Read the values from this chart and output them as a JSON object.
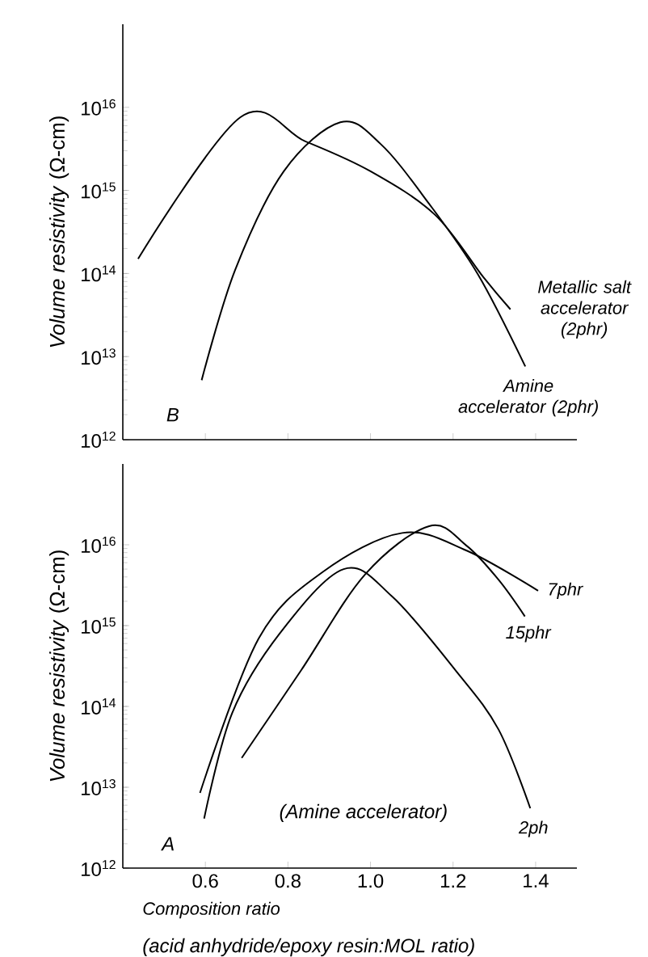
{
  "chart_data": [
    {
      "type": "line",
      "annotations": [
        "B"
      ],
      "ylabel": "*Volume resistivity* (Ω-cm)",
      "xlim": [
        0.4,
        1.5
      ],
      "ylim": [
        1000000000000.0,
        1e+17
      ],
      "log": "y",
      "tick_labels": "y",
      "marker": "none",
      "line_style": "solid",
      "xticks": [
        {
          "value": 0.6,
          "label": null
        },
        {
          "value": 0.8,
          "label": null
        },
        {
          "value": 1.0,
          "label": null
        },
        {
          "value": 1.2,
          "label": null
        },
        {
          "value": 1.4,
          "label": null
        }
      ],
      "yticks": [
        {
          "value": 1000000000000.0,
          "label": "10$^{12}$"
        },
        {
          "value": 10000000000000.0,
          "label": "10$^{13}$"
        },
        {
          "value": 100000000000000.0,
          "label": "10$^{14}$"
        },
        {
          "value": 1000000000000000.0,
          "label": "10$^{15}$"
        },
        {
          "value": 1e+16,
          "label": "10$^{16}$"
        }
      ],
      "series": [
        {
          "name": "Metallic salt accelerator (2phr)",
          "color": "#000000",
          "x": [
            0.437,
            0.685,
            0.842,
            1.0,
            1.156,
            1.273,
            1.339
          ],
          "values": [
            150000000000000.0,
            7600000000000000.0,
            3900000000000000.0,
            1700000000000000.0,
            510000000000000.0,
            91000000000000.0,
            37000000000000.0
          ]
        },
        {
          "name": "Amine accelerator (2phr)",
          "color": "#000000",
          "x": [
            0.591,
            0.672,
            0.79,
            0.927,
            1.025,
            1.142,
            1.26,
            1.375
          ],
          "values": [
            5200000000000.0,
            110000000000000.0,
            1700000000000000.0,
            6600000000000000.0,
            3600000000000000.0,
            690000000000000.0,
            98000000000000.0,
            7600000000000.0
          ]
        }
      ]
    },
    {
      "type": "line",
      "annotations": [
        "A",
        "(Amine accelerator)",
        "(acid anhydride/epoxy resin:MOL ratio)"
      ],
      "xlabel": "Composition ratio",
      "ylabel": "*Volume resistivity* (Ω-cm)",
      "xlim": [
        0.4,
        1.5
      ],
      "ylim": [
        1000000000000.0,
        1e+17
      ],
      "log": "y",
      "marker": "none",
      "line_style": "solid",
      "xticks": [
        0.6,
        0.8,
        {
          "value": 1.0,
          "label": "1.0"
        },
        1.2,
        1.4
      ],
      "yticks": [
        {
          "value": 1000000000000.0,
          "label": "10$^{12}$"
        },
        {
          "value": 10000000000000.0,
          "label": "10$^{13}$"
        },
        {
          "value": 100000000000000.0,
          "label": "10$^{14}$"
        },
        {
          "value": 1000000000000000.0,
          "label": "10$^{15}$"
        },
        {
          "value": 1e+16,
          "label": "10$^{16}$"
        }
      ],
      "series": [
        {
          "name": "7phr",
          "color": "#000000",
          "x": [
            0.587,
            0.729,
            0.884,
            1.077,
            1.232,
            1.406
          ],
          "values": [
            8500000000000.0,
            690000000000000.0,
            4600000000000000.0,
            1.4e+16,
            8500000000000000.0,
            2700000000000000.0
          ]
        },
        {
          "name": "15phr",
          "color": "#000000",
          "x": [
            0.688,
            0.832,
            0.987,
            1.142,
            1.232,
            1.31,
            1.374
          ],
          "values": [
            23000000000000.0,
            280000000000000.0,
            4300000000000000.0,
            1.7e+16,
            9800000000000000.0,
            3700000000000000.0,
            1300000000000000.0
          ]
        },
        {
          "name": "2ph",
          "color": "#000000",
          "x": [
            0.597,
            0.665,
            0.781,
            0.935,
            1.052,
            1.206,
            1.31,
            1.387
          ],
          "values": [
            4100000000000.0,
            83000000000000.0,
            810000000000000.0,
            5000000000000000.0,
            2300000000000000.0,
            280000000000000.0,
            52000000000000.0,
            5500000000000.0
          ]
        }
      ]
    }
  ]
}
